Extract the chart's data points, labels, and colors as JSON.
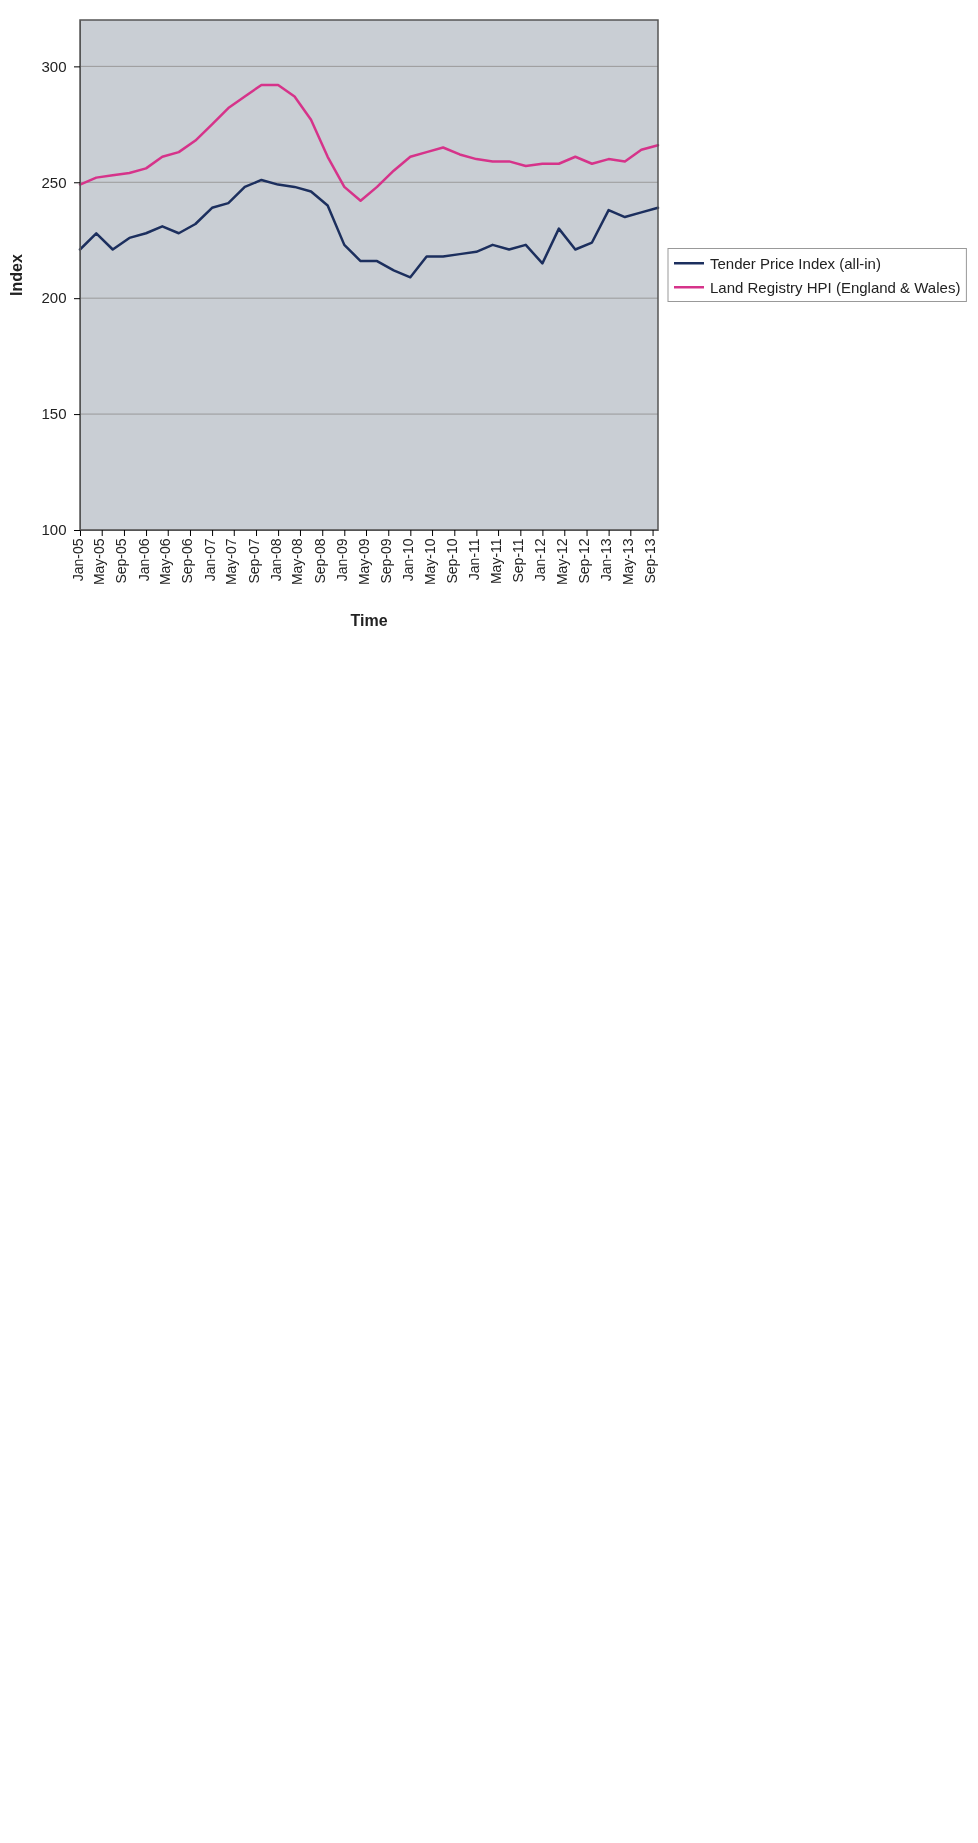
{
  "chart_data": {
    "type": "line",
    "xlabel": "Time",
    "ylabel": "Index",
    "x": [
      "2005-01",
      "2005-04",
      "2005-07",
      "2005-10",
      "2006-01",
      "2006-04",
      "2006-07",
      "2006-10",
      "2007-01",
      "2007-04",
      "2007-07",
      "2007-10",
      "2008-01",
      "2008-04",
      "2008-07",
      "2008-10",
      "2009-01",
      "2009-04",
      "2009-07",
      "2009-10",
      "2010-01",
      "2010-04",
      "2010-07",
      "2010-10",
      "2011-01",
      "2011-04",
      "2011-07",
      "2011-10",
      "2012-01",
      "2012-04",
      "2012-07",
      "2012-10",
      "2013-01",
      "2013-04",
      "2013-07",
      "2013-10"
    ],
    "series": [
      {
        "name": "Tender Price Index (all-in)",
        "color": "#1c2f5e",
        "values": [
          221,
          228,
          221,
          226,
          228,
          231,
          228,
          232,
          239,
          241,
          248,
          251,
          249,
          248,
          246,
          240,
          223,
          216,
          216,
          212,
          209,
          218,
          218,
          219,
          220,
          223,
          221,
          223,
          215,
          230,
          221,
          224,
          238,
          235,
          237,
          239
        ]
      },
      {
        "name": "Land Registry HPI (England & Wales)",
        "color": "#d6338a",
        "values": [
          249,
          252,
          253,
          254,
          256,
          261,
          263,
          268,
          275,
          282,
          287,
          292,
          292,
          287,
          277,
          261,
          248,
          242,
          248,
          255,
          261,
          263,
          265,
          262,
          260,
          259,
          259,
          257,
          258,
          258,
          261,
          258,
          260,
          259,
          264,
          266
        ]
      }
    ],
    "xlim": [
      "2005-01",
      "2013-10"
    ],
    "xticks": [
      {
        "value": "2005-01",
        "label": "Jan-05"
      },
      {
        "value": "2005-05",
        "label": "May-05"
      },
      {
        "value": "2005-09",
        "label": "Sep-05"
      },
      {
        "value": "2006-01",
        "label": "Jan-06"
      },
      {
        "value": "2006-05",
        "label": "May-06"
      },
      {
        "value": "2006-09",
        "label": "Sep-06"
      },
      {
        "value": "2007-01",
        "label": "Jan-07"
      },
      {
        "value": "2007-05",
        "label": "May-07"
      },
      {
        "value": "2007-09",
        "label": "Sep-07"
      },
      {
        "value": "2008-01",
        "label": "Jan-08"
      },
      {
        "value": "2008-05",
        "label": "May-08"
      },
      {
        "value": "2008-09",
        "label": "Sep-08"
      },
      {
        "value": "2009-01",
        "label": "Jan-09"
      },
      {
        "value": "2009-05",
        "label": "May-09"
      },
      {
        "value": "2009-09",
        "label": "Sep-09"
      },
      {
        "value": "2010-01",
        "label": "Jan-10"
      },
      {
        "value": "2010-05",
        "label": "May-10"
      },
      {
        "value": "2010-09",
        "label": "Sep-10"
      },
      {
        "value": "2011-01",
        "label": "Jan-11"
      },
      {
        "value": "2011-05",
        "label": "May-11"
      },
      {
        "value": "2011-09",
        "label": "Sep-11"
      },
      {
        "value": "2012-01",
        "label": "Jan-12"
      },
      {
        "value": "2012-05",
        "label": "May-12"
      },
      {
        "value": "2012-09",
        "label": "Sep-12"
      },
      {
        "value": "2013-01",
        "label": "Jan-13"
      },
      {
        "value": "2013-05",
        "label": "May-13"
      },
      {
        "value": "2013-09",
        "label": "Sep-13"
      }
    ],
    "ylim": [
      100,
      320
    ],
    "yticks": [
      100,
      150,
      200,
      250,
      300
    ],
    "grid": "y",
    "legend": "right",
    "marker": "none",
    "line_style": "solid"
  }
}
